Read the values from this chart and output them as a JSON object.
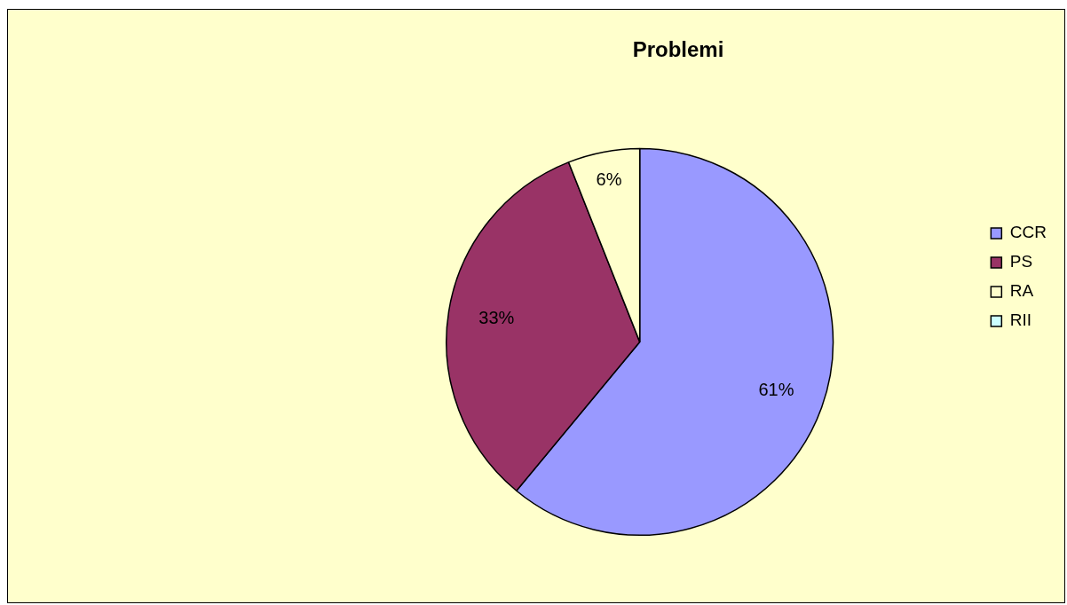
{
  "chart_data": {
    "type": "pie",
    "title": "Problemi",
    "categories": [
      "CCR",
      "PS",
      "RA",
      "RII"
    ],
    "values": [
      61,
      33,
      6,
      0
    ],
    "colors": [
      "#9999ff",
      "#993366",
      "#ffffcc",
      "#ccffff"
    ],
    "value_labels": [
      "61%",
      "33%",
      "6%",
      null
    ],
    "legend": "right"
  }
}
